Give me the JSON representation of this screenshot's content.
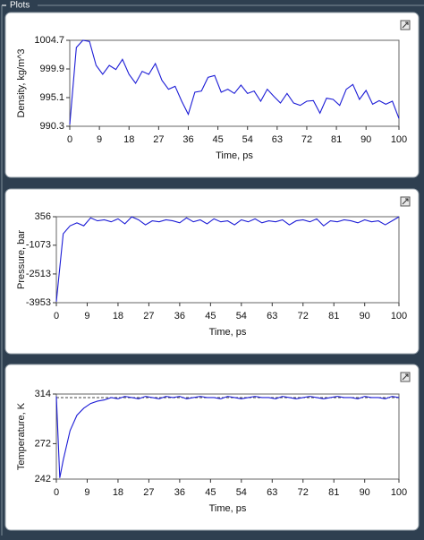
{
  "panel": {
    "title": "Plots"
  },
  "chart_data": [
    {
      "type": "line",
      "x_label": "Time, ps",
      "y_label": "Density, kg/m^3",
      "x": [
        0,
        2,
        4,
        6,
        8,
        10,
        12,
        14,
        16,
        18,
        20,
        22,
        24,
        26,
        28,
        30,
        32,
        34,
        36,
        38,
        40,
        42,
        44,
        46,
        48,
        50,
        52,
        54,
        56,
        58,
        60,
        62,
        64,
        66,
        68,
        70,
        72,
        74,
        76,
        78,
        80,
        82,
        84,
        86,
        88,
        90,
        92,
        94,
        96,
        98,
        100
      ],
      "series": [
        {
          "color": "#1c1cd6",
          "values": [
            990.6,
            1003.5,
            1004.7,
            1004.5,
            1000.5,
            999,
            1000.5,
            999.8,
            1001.5,
            999,
            997.5,
            999.5,
            999,
            1000.8,
            998,
            996.5,
            997,
            994.5,
            992.3,
            996,
            996.2,
            998.5,
            998.8,
            996,
            996.5,
            995.8,
            997.2,
            995.8,
            996.2,
            994.5,
            996.5,
            995.3,
            994.2,
            995.8,
            994.2,
            993.8,
            994.5,
            994.6,
            992.5,
            995,
            994.8,
            993.8,
            996.5,
            997.3,
            994.8,
            996.3,
            994,
            994.6,
            994,
            994.5,
            991.6
          ]
        }
      ],
      "xlim": [
        0,
        100
      ],
      "xticks": [
        0,
        9,
        18,
        27,
        36,
        45,
        54,
        63,
        72,
        81,
        90,
        100
      ],
      "ylim": [
        990.3,
        1004.7
      ],
      "yticks": [
        1004.7,
        999.9,
        995.1,
        990.3
      ],
      "grid": false
    },
    {
      "type": "line",
      "x_label": "Time, ps",
      "y_label": "Pressure, bar",
      "x": [
        0,
        2,
        4,
        6,
        8,
        10,
        12,
        14,
        16,
        18,
        20,
        22,
        24,
        26,
        28,
        30,
        32,
        34,
        36,
        38,
        40,
        42,
        44,
        46,
        48,
        50,
        52,
        54,
        56,
        58,
        60,
        62,
        64,
        66,
        68,
        70,
        72,
        74,
        76,
        78,
        80,
        82,
        84,
        86,
        88,
        90,
        92,
        94,
        96,
        98,
        100
      ],
      "series": [
        {
          "color": "#1c1cd6",
          "values": [
            -3900,
            -500,
            -100,
            50,
            -100,
            300,
            150,
            200,
            100,
            250,
            0,
            350,
            200,
            -50,
            150,
            100,
            200,
            150,
            50,
            300,
            100,
            200,
            0,
            250,
            100,
            150,
            -50,
            200,
            100,
            250,
            50,
            150,
            100,
            200,
            -50,
            150,
            200,
            100,
            250,
            -100,
            150,
            100,
            200,
            150,
            50,
            200,
            100,
            150,
            -50,
            150,
            350
          ]
        }
      ],
      "xlim": [
        0,
        100
      ],
      "xticks": [
        0,
        9,
        18,
        27,
        36,
        45,
        54,
        63,
        72,
        81,
        90,
        100
      ],
      "ylim": [
        -3953,
        356
      ],
      "yticks": [
        356,
        -1073,
        -2513,
        -3953
      ],
      "grid": false
    },
    {
      "type": "line",
      "x_label": "Time, ps",
      "y_label": "Temperature, K",
      "x": [
        0,
        1,
        2,
        4,
        6,
        8,
        10,
        12,
        14,
        16,
        18,
        20,
        22,
        24,
        26,
        28,
        30,
        32,
        34,
        36,
        38,
        40,
        42,
        44,
        46,
        48,
        50,
        52,
        54,
        56,
        58,
        60,
        62,
        64,
        66,
        68,
        70,
        72,
        74,
        76,
        78,
        80,
        82,
        84,
        86,
        88,
        90,
        92,
        94,
        96,
        98,
        100
      ],
      "series": [
        {
          "color": "#1c1cd6",
          "values": [
            312,
            243,
            258,
            283,
            296,
            302,
            306,
            308,
            309,
            311,
            310,
            312,
            311,
            310,
            312,
            311,
            310,
            312,
            311,
            312,
            310,
            311,
            312,
            311,
            311,
            310,
            312,
            311,
            310,
            311,
            312,
            311,
            311,
            310,
            312,
            311,
            310,
            311,
            312,
            311,
            310,
            311,
            312,
            311,
            311,
            310,
            312,
            311,
            311,
            310,
            312,
            311
          ]
        }
      ],
      "reference_line": {
        "value": 311,
        "color": "#444444"
      },
      "xlim": [
        0,
        100
      ],
      "xticks": [
        0,
        9,
        18,
        27,
        36,
        45,
        54,
        63,
        72,
        81,
        90,
        100
      ],
      "ylim": [
        242,
        314
      ],
      "yticks": [
        314,
        272,
        242
      ],
      "grid": false
    }
  ]
}
